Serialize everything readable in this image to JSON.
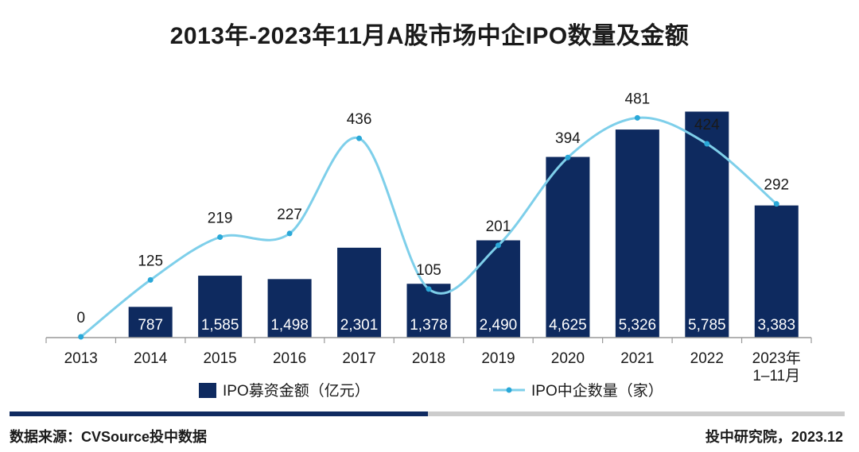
{
  "title": "2013年-2023年11月A股市场中企IPO数量及金额",
  "footer": {
    "source": "数据来源：CVSource投中数据",
    "credit": "投中研究院，2023.12"
  },
  "colors": {
    "bar": "#0e2a5f",
    "line": "#7ecfea",
    "marker": "#2aa8d8",
    "axis": "#999999",
    "footer_left": "#102b61",
    "footer_right": "#cccccc"
  },
  "chart_data": {
    "type": "bar+line",
    "categories": [
      "2013",
      "2014",
      "2015",
      "2016",
      "2017",
      "2018",
      "2019",
      "2020",
      "2021",
      "2022",
      "2023年\n1–11月"
    ],
    "series": [
      {
        "name": "IPO募资金额（亿元）",
        "type": "bar",
        "values": [
          0,
          787,
          1585,
          1498,
          2301,
          1378,
          2490,
          4625,
          5326,
          5785,
          3383
        ],
        "labels": [
          "",
          "787",
          "1,585",
          "1,498",
          "2,301",
          "1,378",
          "2,490",
          "4,625",
          "5,326",
          "5,785",
          "3,383"
        ]
      },
      {
        "name": "IPO中企数量（家）",
        "type": "line",
        "smooth": true,
        "values": [
          0,
          125,
          219,
          227,
          436,
          105,
          201,
          394,
          481,
          424,
          292
        ],
        "labels": [
          "0",
          "125",
          "219",
          "227",
          "436",
          "105",
          "201",
          "394",
          "481",
          "424",
          "292"
        ]
      }
    ],
    "legend_position": "bottom",
    "grid": false
  }
}
